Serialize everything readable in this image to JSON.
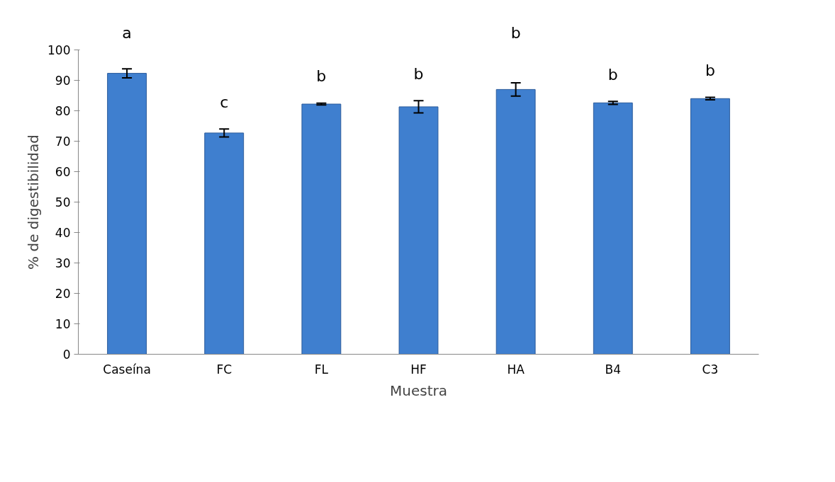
{
  "chart_data": {
    "type": "bar",
    "xlabel": "Muestra",
    "ylabel": "% de digestibilidad",
    "categories": [
      "Caseína",
      "FC",
      "FL",
      "HF",
      "HA",
      "B4",
      "C3"
    ],
    "values": [
      92.3,
      72.7,
      82.2,
      81.3,
      87.0,
      82.6,
      84.0
    ],
    "errors": [
      1.5,
      1.3,
      0.3,
      2.0,
      2.2,
      0.5,
      0.4
    ],
    "color": "#3f7fcf",
    "ylim": [
      0,
      100
    ],
    "yticks": [
      0,
      10,
      20,
      30,
      40,
      50,
      60,
      70,
      80,
      90,
      100
    ],
    "grid": false,
    "annotations": [
      "a",
      "c",
      "b",
      "b",
      "b",
      "b",
      "b"
    ]
  }
}
